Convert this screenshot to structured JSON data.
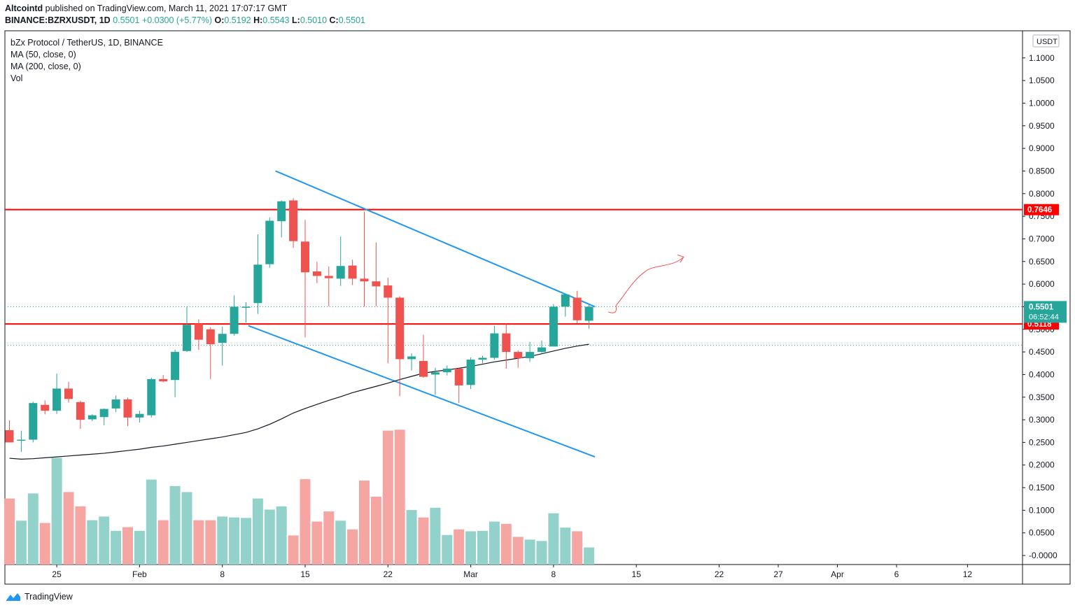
{
  "header": {
    "author": "Altcointd",
    "published_text": "published on TradingView.com, March 11, 2021 17:07:17 GMT",
    "symbol": "BINANCE:BZRXUSDT, 1D",
    "last": "0.5501",
    "change": "+0.0300 (+5.77%)",
    "o_label": "O:",
    "o_value": "0.5192",
    "h_label": "H:",
    "h_value": "0.5543",
    "l_label": "L:",
    "l_value": "0.5010",
    "c_label": "C:",
    "c_value": "0.5501"
  },
  "legend": {
    "title": "bZx Protocol / TetherUS, 1D, BINANCE",
    "ma50": "MA (50, close, 0)",
    "ma200": "MA (200, close, 0)",
    "vol": "Vol"
  },
  "footer": {
    "brand": "TradingView"
  },
  "colors": {
    "up": "#26a69a",
    "down": "#ef5350",
    "vol_up": "#93d2cb",
    "vol_down": "#f5a5a2",
    "trendline": "#2196f3",
    "level": "#ff0000",
    "ma": "#131722",
    "arrow": "#ef5350",
    "axis_text": "#131722",
    "border": "#131722"
  },
  "chart_data": {
    "type": "candlestick",
    "title": "bZx Protocol / TetherUS, 1D, BINANCE",
    "currency": "USDT",
    "ylim": [
      -0.02,
      1.16
    ],
    "y_ticks": [
      "1.1000",
      "1.0500",
      "1.0000",
      "0.9500",
      "0.9000",
      "0.8500",
      "0.8000",
      "0.7500",
      "0.7000",
      "0.6500",
      "0.6000",
      "0.5500",
      "0.5000",
      "0.4500",
      "0.4000",
      "0.3500",
      "0.3000",
      "0.2500",
      "0.2000",
      "0.1500",
      "0.1000",
      "0.0500",
      "-0.0000"
    ],
    "x_ticks": [
      {
        "label": "25",
        "index": 4
      },
      {
        "label": "Feb",
        "index": 11
      },
      {
        "label": "8",
        "index": 18
      },
      {
        "label": "15",
        "index": 25
      },
      {
        "label": "22",
        "index": 32
      },
      {
        "label": "Mar",
        "index": 39
      },
      {
        "label": "8",
        "index": 46
      },
      {
        "label": "15",
        "index": 53
      },
      {
        "label": "22",
        "index": 60
      },
      {
        "label": "27",
        "index": 65
      },
      {
        "label": "Apr",
        "index": 70
      },
      {
        "label": "6",
        "index": 75
      },
      {
        "label": "12",
        "index": 81
      }
    ],
    "candles": [
      {
        "o": 0.277,
        "h": 0.299,
        "l": 0.25,
        "c": 0.25,
        "v": 0.143
      },
      {
        "o": 0.254,
        "h": 0.276,
        "l": 0.229,
        "c": 0.256,
        "v": 0.095
      },
      {
        "o": 0.256,
        "h": 0.34,
        "l": 0.25,
        "c": 0.337,
        "v": 0.154
      },
      {
        "o": 0.333,
        "h": 0.343,
        "l": 0.312,
        "c": 0.32,
        "v": 0.09
      },
      {
        "o": 0.32,
        "h": 0.402,
        "l": 0.313,
        "c": 0.369,
        "v": 0.231
      },
      {
        "o": 0.369,
        "h": 0.384,
        "l": 0.338,
        "c": 0.346,
        "v": 0.157
      },
      {
        "o": 0.339,
        "h": 0.342,
        "l": 0.28,
        "c": 0.3,
        "v": 0.126
      },
      {
        "o": 0.301,
        "h": 0.312,
        "l": 0.297,
        "c": 0.31,
        "v": 0.096
      },
      {
        "o": 0.306,
        "h": 0.325,
        "l": 0.288,
        "c": 0.324,
        "v": 0.104
      },
      {
        "o": 0.325,
        "h": 0.354,
        "l": 0.317,
        "c": 0.345,
        "v": 0.073
      },
      {
        "o": 0.345,
        "h": 0.349,
        "l": 0.286,
        "c": 0.305,
        "v": 0.081
      },
      {
        "o": 0.305,
        "h": 0.32,
        "l": 0.294,
        "c": 0.313,
        "v": 0.073
      },
      {
        "o": 0.31,
        "h": 0.393,
        "l": 0.305,
        "c": 0.39,
        "v": 0.184
      },
      {
        "o": 0.39,
        "h": 0.399,
        "l": 0.383,
        "c": 0.385,
        "v": 0.096
      },
      {
        "o": 0.388,
        "h": 0.455,
        "l": 0.35,
        "c": 0.45,
        "v": 0.17
      },
      {
        "o": 0.452,
        "h": 0.55,
        "l": 0.45,
        "c": 0.51,
        "v": 0.157
      },
      {
        "o": 0.512,
        "h": 0.522,
        "l": 0.455,
        "c": 0.477,
        "v": 0.096
      },
      {
        "o": 0.5,
        "h": 0.505,
        "l": 0.39,
        "c": 0.467,
        "v": 0.096
      },
      {
        "o": 0.47,
        "h": 0.506,
        "l": 0.42,
        "c": 0.49,
        "v": 0.104
      },
      {
        "o": 0.49,
        "h": 0.575,
        "l": 0.486,
        "c": 0.55,
        "v": 0.102
      },
      {
        "o": 0.55,
        "h": 0.56,
        "l": 0.515,
        "c": 0.55,
        "v": 0.101
      },
      {
        "o": 0.558,
        "h": 0.71,
        "l": 0.534,
        "c": 0.643,
        "v": 0.143
      },
      {
        "o": 0.644,
        "h": 0.747,
        "l": 0.636,
        "c": 0.74,
        "v": 0.119
      },
      {
        "o": 0.739,
        "h": 0.785,
        "l": 0.703,
        "c": 0.783,
        "v": 0.126
      },
      {
        "o": 0.785,
        "h": 0.79,
        "l": 0.68,
        "c": 0.695,
        "v": 0.063
      },
      {
        "o": 0.694,
        "h": 0.742,
        "l": 0.482,
        "c": 0.626,
        "v": 0.185
      },
      {
        "o": 0.628,
        "h": 0.65,
        "l": 0.602,
        "c": 0.618,
        "v": 0.093
      },
      {
        "o": 0.618,
        "h": 0.639,
        "l": 0.551,
        "c": 0.613,
        "v": 0.115
      },
      {
        "o": 0.612,
        "h": 0.705,
        "l": 0.596,
        "c": 0.64,
        "v": 0.095
      },
      {
        "o": 0.641,
        "h": 0.654,
        "l": 0.598,
        "c": 0.612,
        "v": 0.076
      },
      {
        "o": 0.612,
        "h": 0.76,
        "l": 0.55,
        "c": 0.606,
        "v": 0.182
      },
      {
        "o": 0.606,
        "h": 0.692,
        "l": 0.551,
        "c": 0.595,
        "v": 0.147
      },
      {
        "o": 0.597,
        "h": 0.614,
        "l": 0.425,
        "c": 0.57,
        "v": 0.29
      },
      {
        "o": 0.57,
        "h": 0.573,
        "l": 0.352,
        "c": 0.434,
        "v": 0.292
      },
      {
        "o": 0.434,
        "h": 0.447,
        "l": 0.409,
        "c": 0.44,
        "v": 0.118
      },
      {
        "o": 0.43,
        "h": 0.488,
        "l": 0.393,
        "c": 0.395,
        "v": 0.102
      },
      {
        "o": 0.4,
        "h": 0.415,
        "l": 0.355,
        "c": 0.405,
        "v": 0.123
      },
      {
        "o": 0.405,
        "h": 0.42,
        "l": 0.398,
        "c": 0.413,
        "v": 0.064
      },
      {
        "o": 0.413,
        "h": 0.415,
        "l": 0.337,
        "c": 0.376,
        "v": 0.076
      },
      {
        "o": 0.377,
        "h": 0.438,
        "l": 0.368,
        "c": 0.433,
        "v": 0.072
      },
      {
        "o": 0.433,
        "h": 0.441,
        "l": 0.425,
        "c": 0.437,
        "v": 0.073
      },
      {
        "o": 0.437,
        "h": 0.508,
        "l": 0.433,
        "c": 0.491,
        "v": 0.093
      },
      {
        "o": 0.491,
        "h": 0.512,
        "l": 0.413,
        "c": 0.45,
        "v": 0.088
      },
      {
        "o": 0.45,
        "h": 0.453,
        "l": 0.415,
        "c": 0.436,
        "v": 0.06
      },
      {
        "o": 0.436,
        "h": 0.472,
        "l": 0.428,
        "c": 0.45,
        "v": 0.054
      },
      {
        "o": 0.45,
        "h": 0.475,
        "l": 0.448,
        "c": 0.46,
        "v": 0.051
      },
      {
        "o": 0.462,
        "h": 0.556,
        "l": 0.462,
        "c": 0.55,
        "v": 0.111
      },
      {
        "o": 0.55,
        "h": 0.577,
        "l": 0.528,
        "c": 0.577,
        "v": 0.08
      },
      {
        "o": 0.57,
        "h": 0.585,
        "l": 0.513,
        "c": 0.52,
        "v": 0.072
      },
      {
        "o": 0.519,
        "h": 0.554,
        "l": 0.501,
        "c": 0.55,
        "v": 0.037
      }
    ],
    "ma200": [
      0.215,
      0.213,
      0.214,
      0.216,
      0.218,
      0.22,
      0.222,
      0.224,
      0.226,
      0.229,
      0.232,
      0.235,
      0.239,
      0.242,
      0.246,
      0.25,
      0.254,
      0.258,
      0.262,
      0.267,
      0.272,
      0.28,
      0.29,
      0.302,
      0.315,
      0.325,
      0.334,
      0.343,
      0.351,
      0.36,
      0.367,
      0.374,
      0.381,
      0.389,
      0.396,
      0.403,
      0.407,
      0.41,
      0.414,
      0.418,
      0.423,
      0.428,
      0.432,
      0.436,
      0.44,
      0.446,
      0.452,
      0.458,
      0.463,
      0.467
    ],
    "levels": [
      {
        "price": 0.7646,
        "label": "0.7646"
      },
      {
        "price": 0.5118,
        "label": "0.5118"
      }
    ],
    "last_price": {
      "price": 0.5501,
      "label": "0.5501",
      "countdown": "06:52:44"
    },
    "dotted_levels": [
      0.5501,
      0.465
    ],
    "trendlines": [
      {
        "from": [
          22.5,
          0.85
        ],
        "to": [
          49.5,
          0.55
        ]
      },
      {
        "from": [
          20.2,
          0.508
        ],
        "to": [
          49.5,
          0.218
        ]
      }
    ],
    "annotation_arrow": {
      "from": [
        50.8,
        0.543
      ],
      "to": [
        57.0,
        0.66
      ]
    }
  }
}
